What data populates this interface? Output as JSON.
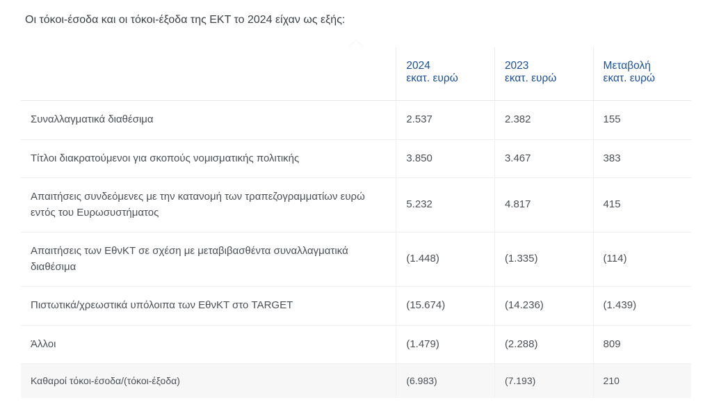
{
  "intro": "Οι τόκοι-έσοδα και οι τόκοι-έξοδα της ΕΚΤ το 2024 είχαν ως εξής:",
  "table": {
    "columns": [
      {
        "year": "",
        "unit": ""
      },
      {
        "year": "2024",
        "unit": "εκατ. ευρώ"
      },
      {
        "year": "2023",
        "unit": "εκατ. ευρώ"
      },
      {
        "year": "Μεταβολή",
        "unit": "εκατ. ευρώ"
      }
    ],
    "rows": [
      {
        "label": "Συναλλαγματικά διαθέσιμα",
        "v2024": "2.537",
        "v2023": "2.382",
        "delta": "155"
      },
      {
        "label": "Τίτλοι διακρατούμενοι για σκοπούς νομισματικής πολιτικής",
        "v2024": "3.850",
        "v2023": "3.467",
        "delta": "383"
      },
      {
        "label": "Απαιτήσεις συνδεόμενες με την κατανομή των τραπεζογραμματίων ευρώ εντός του Ευρωσυστήματος",
        "v2024": "5.232",
        "v2023": "4.817",
        "delta": "415"
      },
      {
        "label": "Απαιτήσεις των ΕθνΚΤ σε σχέση με μεταβιβασθέντα συναλλαγματικά διαθέσιμα",
        "v2024": "(1.448)",
        "v2023": "(1.335)",
        "delta": "(114)"
      },
      {
        "label": "Πιστωτικά/χρεωστικά υπόλοιπα των ΕθνΚΤ στο TARGET",
        "v2024": "(15.674)",
        "v2023": "(14.236)",
        "delta": "(1.439)"
      },
      {
        "label": "Άλλοι",
        "v2024": "(1.479)",
        "v2023": "(2.288)",
        "delta": "809"
      }
    ],
    "summary": {
      "label": "Καθαροί τόκοι-έσοδα/(τόκοι-έξοδα)",
      "v2024": "(6.983)",
      "v2023": "(7.193)",
      "delta": "210"
    }
  }
}
